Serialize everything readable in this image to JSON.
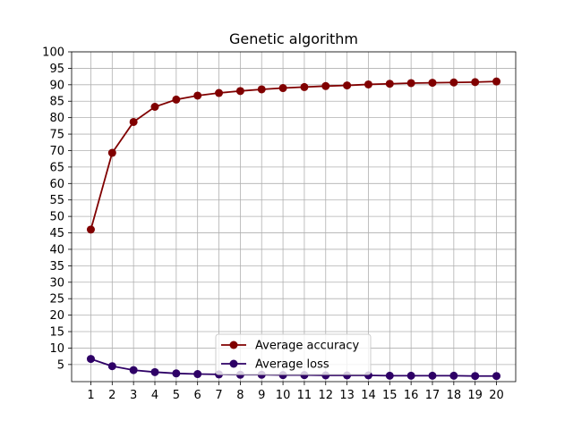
{
  "chart_data": {
    "type": "line",
    "title": "Genetic algorithm",
    "xlabel": "",
    "ylabel": "",
    "x": [
      1,
      2,
      3,
      4,
      5,
      6,
      7,
      8,
      9,
      10,
      11,
      12,
      13,
      14,
      15,
      16,
      17,
      18,
      19,
      20
    ],
    "xlim": [
      0.1,
      20.9
    ],
    "ylim": [
      -0.2,
      100
    ],
    "x_ticks": [
      1,
      2,
      3,
      4,
      5,
      6,
      7,
      8,
      9,
      10,
      11,
      12,
      13,
      14,
      15,
      16,
      17,
      18,
      19,
      20
    ],
    "y_ticks": [
      5,
      10,
      15,
      20,
      25,
      30,
      35,
      40,
      45,
      50,
      55,
      60,
      65,
      70,
      75,
      80,
      85,
      90,
      95,
      100
    ],
    "grid": true,
    "legend_position": "bottom-center",
    "series": [
      {
        "name": "Average accuracy",
        "color": "#800000",
        "values": [
          46.0,
          69.3,
          78.7,
          83.3,
          85.5,
          86.7,
          87.5,
          88.1,
          88.6,
          89.0,
          89.3,
          89.6,
          89.8,
          90.1,
          90.3,
          90.5,
          90.6,
          90.7,
          90.8,
          91.0
        ]
      },
      {
        "name": "Average loss",
        "color": "#2e0066",
        "values": [
          6.7,
          4.5,
          3.3,
          2.7,
          2.3,
          2.1,
          2.0,
          1.9,
          1.9,
          1.8,
          1.8,
          1.7,
          1.7,
          1.7,
          1.6,
          1.6,
          1.6,
          1.6,
          1.5,
          1.5
        ]
      }
    ]
  }
}
